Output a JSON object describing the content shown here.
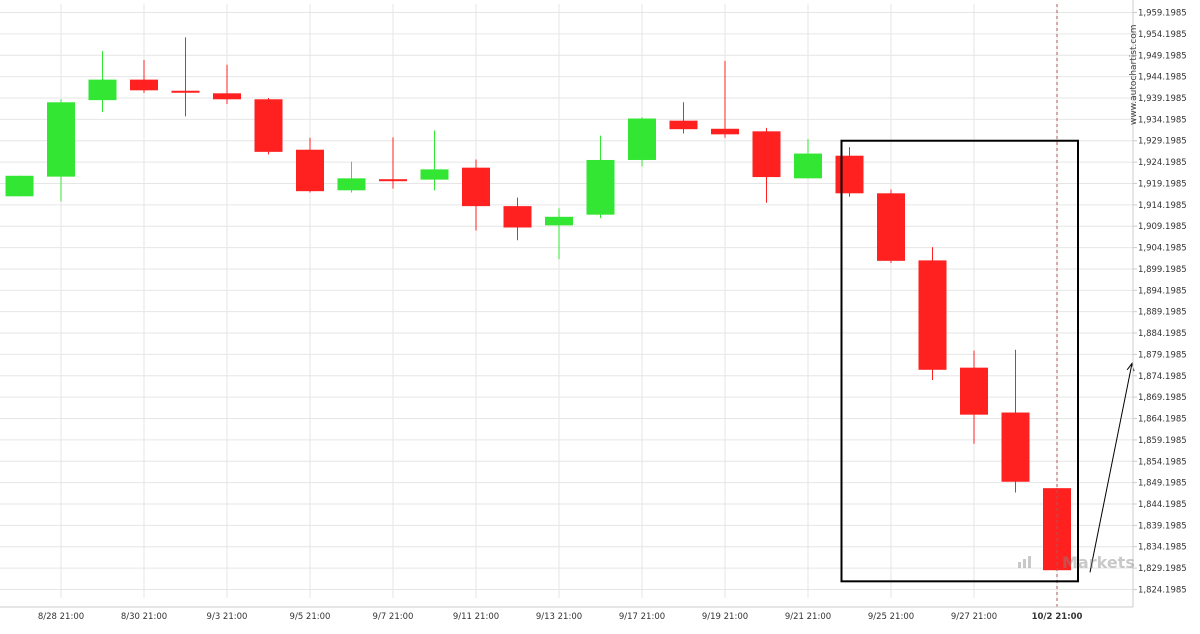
{
  "chart_data": {
    "type": "candlestick",
    "watermark": "www.autochartist.com",
    "logo_text": "Markets",
    "colors": {
      "bull": "#33e633",
      "bear": "#ff2020",
      "grid": "#e6e6e6",
      "axis": "#cccccc",
      "text": "#333333",
      "box": "#000000"
    },
    "ylim": [
      1822.1985,
      1961.1985
    ],
    "y_ticks": [
      "1,959.1985",
      "1,954.1985",
      "1,949.1985",
      "1,944.1985",
      "1,939.1985",
      "1,934.1985",
      "1,929.1985",
      "1,924.1985",
      "1,919.1985",
      "1,914.1985",
      "1,909.1985",
      "1,904.1985",
      "1,899.1985",
      "1,894.1985",
      "1,889.1985",
      "1,884.1985",
      "1,879.1985",
      "1,874.1985",
      "1,869.1985",
      "1,864.1985",
      "1,859.1985",
      "1,854.1985",
      "1,849.1985",
      "1,844.1985",
      "1,839.1985",
      "1,834.1985",
      "1,829.1985",
      "1,824.1985"
    ],
    "x_labels": [
      {
        "label": "8/28 21:00",
        "index": 1,
        "bold": false
      },
      {
        "label": "8/30 21:00",
        "index": 3,
        "bold": false
      },
      {
        "label": "9/3 21:00",
        "index": 5,
        "bold": false
      },
      {
        "label": "9/5 21:00",
        "index": 7,
        "bold": false
      },
      {
        "label": "9/7 21:00",
        "index": 9,
        "bold": false
      },
      {
        "label": "9/11 21:00",
        "index": 11,
        "bold": false
      },
      {
        "label": "9/13 21:00",
        "index": 13,
        "bold": false
      },
      {
        "label": "9/17 21:00",
        "index": 15,
        "bold": false
      },
      {
        "label": "9/19 21:00",
        "index": 17,
        "bold": false
      },
      {
        "label": "9/21 21:00",
        "index": 19,
        "bold": false
      },
      {
        "label": "9/25 21:00",
        "index": 21,
        "bold": false
      },
      {
        "label": "9/27 21:00",
        "index": 23,
        "bold": false
      },
      {
        "label": "10/2 21:00",
        "index": 25,
        "bold": true
      }
    ],
    "candles": [
      {
        "o": 1916.2,
        "h": 1921.0,
        "l": 1916.2,
        "c": 1921.0
      },
      {
        "o": 1920.8,
        "h": 1938.9,
        "l": 1915.0,
        "c": 1938.2
      },
      {
        "o": 1938.7,
        "h": 1950.2,
        "l": 1935.9,
        "c": 1943.5
      },
      {
        "o": 1943.5,
        "h": 1948.1,
        "l": 1940.4,
        "c": 1941.0
      },
      {
        "o": 1940.9,
        "h": 1953.4,
        "l": 1934.9,
        "c": 1940.8
      },
      {
        "o": 1940.3,
        "h": 1947.0,
        "l": 1937.8,
        "c": 1938.9
      },
      {
        "o": 1938.9,
        "h": 1939.2,
        "l": 1926.0,
        "c": 1926.6
      },
      {
        "o": 1927.1,
        "h": 1929.9,
        "l": 1917.1,
        "c": 1917.4
      },
      {
        "o": 1917.6,
        "h": 1924.3,
        "l": 1917.1,
        "c": 1920.4
      },
      {
        "o": 1920.2,
        "h": 1930.0,
        "l": 1918.0,
        "c": 1919.9
      },
      {
        "o": 1920.1,
        "h": 1931.6,
        "l": 1917.6,
        "c": 1922.5
      },
      {
        "o": 1922.9,
        "h": 1924.8,
        "l": 1908.2,
        "c": 1913.9
      },
      {
        "o": 1913.9,
        "h": 1915.9,
        "l": 1905.9,
        "c": 1908.9
      },
      {
        "o": 1909.4,
        "h": 1913.4,
        "l": 1901.5,
        "c": 1911.4
      },
      {
        "o": 1911.9,
        "h": 1930.4,
        "l": 1911.1,
        "c": 1924.7
      },
      {
        "o": 1924.7,
        "h": 1934.7,
        "l": 1923.2,
        "c": 1934.4
      },
      {
        "o": 1933.9,
        "h": 1938.2,
        "l": 1930.9,
        "c": 1931.9
      },
      {
        "o": 1932.0,
        "h": 1947.9,
        "l": 1929.9,
        "c": 1930.7
      },
      {
        "o": 1931.4,
        "h": 1932.2,
        "l": 1914.7,
        "c": 1920.7
      },
      {
        "o": 1920.4,
        "h": 1929.6,
        "l": 1920.4,
        "c": 1926.2
      },
      {
        "o": 1925.7,
        "h": 1927.7,
        "l": 1916.1,
        "c": 1916.9
      },
      {
        "o": 1916.9,
        "h": 1917.8,
        "l": 1900.6,
        "c": 1901.1
      },
      {
        "o": 1901.2,
        "h": 1904.3,
        "l": 1873.2,
        "c": 1875.6
      },
      {
        "o": 1876.1,
        "h": 1880.1,
        "l": 1858.3,
        "c": 1865.1
      },
      {
        "o": 1865.6,
        "h": 1880.3,
        "l": 1846.9,
        "c": 1849.4
      },
      {
        "o": 1847.9,
        "h": 1847.9,
        "l": 1828.7,
        "c": 1828.7
      }
    ],
    "pattern_box": {
      "from_index": 20,
      "to_index": 25,
      "top": 1929.2,
      "bottom": 1826.1
    },
    "projection_arrow": {
      "from": 1828.2,
      "to": 1877.1
    },
    "current_time_label": "10/2 21:00"
  }
}
